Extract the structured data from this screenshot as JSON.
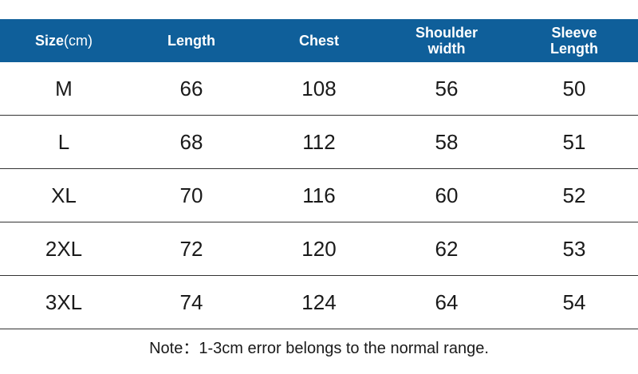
{
  "colors": {
    "header_background": "#0f5f9a",
    "header_text": "#ffffff",
    "row_divider": "#333333"
  },
  "header": {
    "size_label": "Size",
    "size_unit": "(cm)",
    "length": "Length",
    "chest": "Chest",
    "shoulder_width": "Shoulder\nwidth",
    "sleeve_length": "Sleeve\nLength"
  },
  "rows": [
    {
      "size": "M",
      "length": "66",
      "chest": "108",
      "shoulder_width": "56",
      "sleeve_length": "50"
    },
    {
      "size": "L",
      "length": "68",
      "chest": "112",
      "shoulder_width": "58",
      "sleeve_length": "51"
    },
    {
      "size": "XL",
      "length": "70",
      "chest": "116",
      "shoulder_width": "60",
      "sleeve_length": "52"
    },
    {
      "size": "2XL",
      "length": "72",
      "chest": "120",
      "shoulder_width": "62",
      "sleeve_length": "53"
    },
    {
      "size": "3XL",
      "length": "74",
      "chest": "124",
      "shoulder_width": "64",
      "sleeve_length": "54"
    }
  ],
  "note": "Note：1-3cm error belongs to the normal range."
}
